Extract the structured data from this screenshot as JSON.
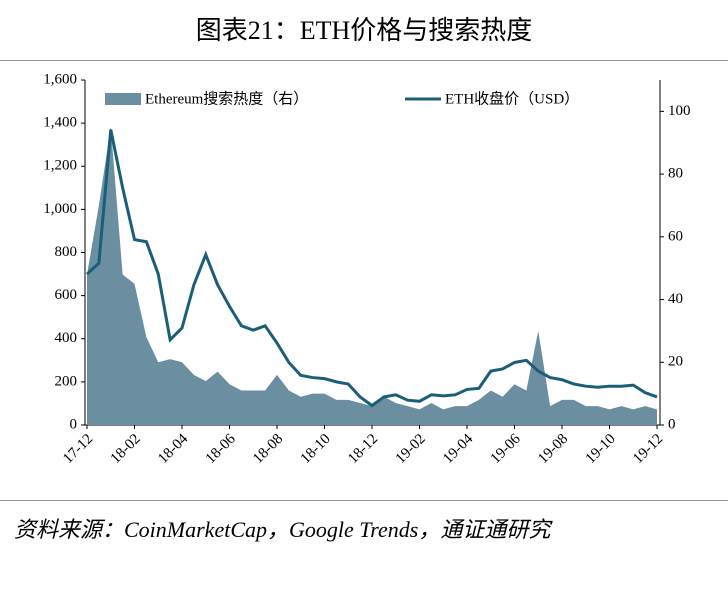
{
  "chart_data": {
    "type": "line_area",
    "title": "图表21：ETH价格与搜索热度",
    "source": "资料来源：CoinMarketCap，Google Trends，通证通研究",
    "categories": [
      "17-12",
      null,
      null,
      null,
      "18-02",
      null,
      null,
      null,
      "18-04",
      null,
      null,
      null,
      "18-06",
      null,
      null,
      null,
      "18-08",
      null,
      null,
      null,
      "18-10",
      null,
      null,
      null,
      "18-12",
      null,
      null,
      null,
      "19-02",
      null,
      null,
      null,
      "19-04",
      null,
      null,
      null,
      "19-06",
      null,
      null,
      null,
      "19-08",
      null,
      null,
      null,
      "19-10",
      null,
      null,
      null,
      "19-12"
    ],
    "series": [
      {
        "name": "Ethereum搜索热度（右）",
        "kind": "area",
        "axis": "y2",
        "color": "#6b8ea0",
        "values": [
          48,
          70,
          95,
          48,
          45,
          28,
          20,
          21,
          20,
          16,
          14,
          17,
          13,
          11,
          11,
          11,
          16,
          11,
          9,
          10,
          10,
          8,
          8,
          7,
          6,
          9,
          7,
          6,
          5,
          7,
          5,
          6,
          6,
          8,
          11,
          9,
          13,
          11,
          30,
          6,
          8,
          8,
          6,
          6,
          5,
          6,
          5,
          6,
          5
        ]
      },
      {
        "name": "ETH收盘价（USD）",
        "kind": "line",
        "color": "#1b5e78",
        "values": [
          700,
          750,
          1370,
          1100,
          860,
          850,
          700,
          395,
          450,
          650,
          790,
          650,
          550,
          460,
          440,
          460,
          380,
          290,
          230,
          220,
          215,
          200,
          190,
          130,
          90,
          130,
          140,
          115,
          110,
          140,
          135,
          140,
          165,
          170,
          250,
          260,
          290,
          300,
          250,
          220,
          210,
          190,
          180,
          175,
          180,
          180,
          185,
          150,
          130
        ]
      }
    ],
    "ylim": [
      0,
      1600
    ],
    "yticks": [
      0,
      200,
      400,
      600,
      800,
      {
        "value": 1000,
        "label": "1,000"
      },
      {
        "value": 1200,
        "label": "1,200"
      },
      {
        "value": 1400,
        "label": "1,400"
      },
      {
        "value": 1600,
        "label": "1,600"
      }
    ],
    "y2lim": [
      0,
      110
    ],
    "y2ticks": [
      0,
      20,
      40,
      60,
      80,
      100
    ],
    "legend": "top"
  }
}
